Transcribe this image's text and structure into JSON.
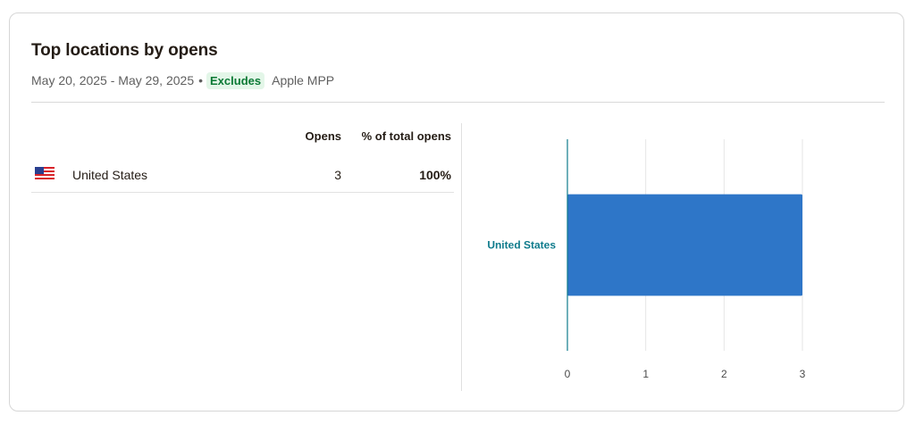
{
  "card": {
    "title": "Top locations by opens",
    "date_range": "May 20, 2025 - May 29, 2025",
    "separator": "•",
    "badge": "Excludes",
    "badge_detail": "Apple MPP"
  },
  "table": {
    "headers": {
      "opens": "Opens",
      "pct": "% of total opens"
    },
    "rows": [
      {
        "flag_icon": "us-flag-icon",
        "country": "United States",
        "opens": "3",
        "pct": "100%"
      }
    ]
  },
  "chart_data": {
    "type": "bar",
    "orientation": "horizontal",
    "categories": [
      "United States"
    ],
    "values": [
      3
    ],
    "xlim": [
      0,
      3
    ],
    "xticks": [
      "0",
      "1",
      "2",
      "3"
    ],
    "grid": true,
    "colors": {
      "bar": "#2e76c8",
      "axis": "#0f7b8c",
      "label": "#0f7b8c"
    }
  }
}
